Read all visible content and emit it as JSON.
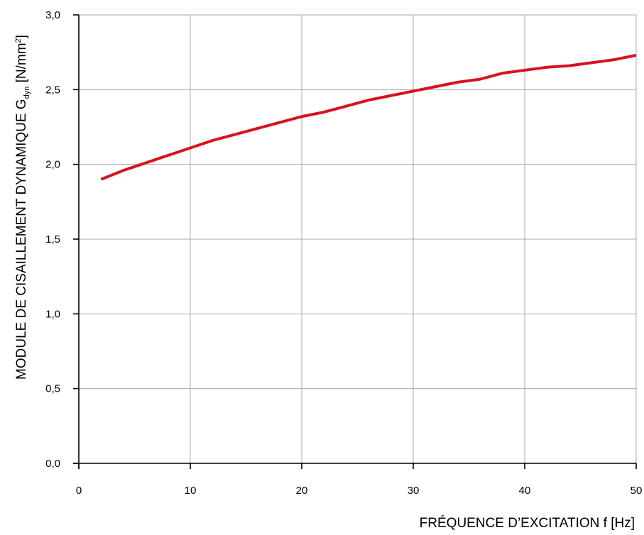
{
  "chart_data": {
    "type": "line",
    "title": "",
    "xlabel": "FRÉQUENCE D’EXCITATION f [Hz]",
    "ylabel": {
      "main": "MODULE DE CISAILLEMENT DYNAMIQUE G",
      "subscript": "dyn",
      "unit_prefix": "[N/mm",
      "unit_superscript": "2",
      "unit_suffix": "]"
    },
    "xlim": [
      0,
      50
    ],
    "ylim": [
      0,
      3
    ],
    "x_ticks": [
      0,
      10,
      20,
      30,
      40,
      50
    ],
    "x_tick_labels": [
      "0",
      "10",
      "20",
      "30",
      "40",
      "50"
    ],
    "y_ticks": [
      0,
      0.5,
      1,
      1.5,
      2,
      2.5,
      3
    ],
    "y_tick_labels": [
      "0,0",
      "0,5",
      "1,0",
      "1,5",
      "2,0",
      "2,5",
      "3,0"
    ],
    "grid": true,
    "legend": "none",
    "series": [
      {
        "color": "#d7121f",
        "x": [
          2,
          4,
          6,
          8,
          10,
          12,
          14,
          16,
          18,
          20,
          22,
          24,
          26,
          28,
          30,
          32,
          34,
          36,
          38,
          40,
          42,
          44,
          46,
          48,
          50
        ],
        "y": [
          1.9,
          1.96,
          2.01,
          2.06,
          2.11,
          2.16,
          2.2,
          2.24,
          2.28,
          2.32,
          2.35,
          2.39,
          2.43,
          2.46,
          2.49,
          2.52,
          2.55,
          2.57,
          2.61,
          2.63,
          2.65,
          2.66,
          2.68,
          2.7,
          2.73
        ]
      }
    ]
  }
}
